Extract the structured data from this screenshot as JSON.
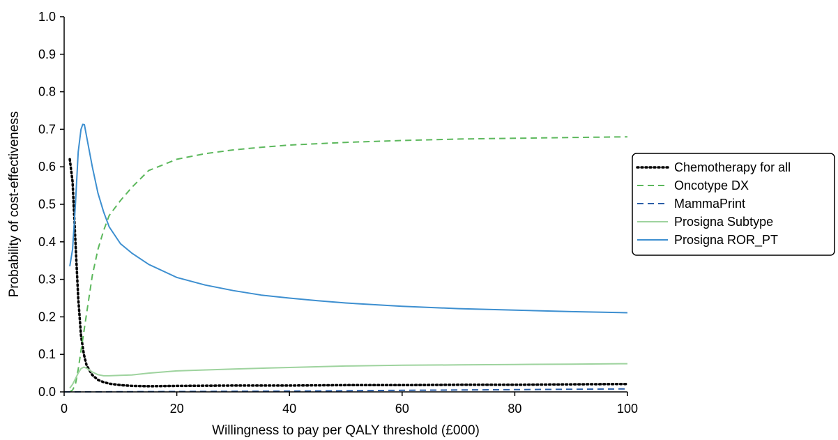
{
  "chart_data": {
    "type": "line",
    "title": "",
    "xlabel": "Willingness to pay per QALY threshold (£000)",
    "ylabel": "Probability of cost-effectiveness",
    "xlim": [
      0,
      100
    ],
    "ylim": [
      0,
      1.0
    ],
    "x_ticks": [
      "0",
      "20",
      "40",
      "60",
      "80",
      "100"
    ],
    "y_ticks": [
      "0.0",
      "0.1",
      "0.2",
      "0.3",
      "0.4",
      "0.5",
      "0.6",
      "0.7",
      "0.8",
      "0.9",
      "1.0"
    ],
    "grid": false,
    "legend_position": "right",
    "series": [
      {
        "name": "Chemotherapy for all",
        "color": "#000000",
        "style": "dotted",
        "x": [
          1,
          1.5,
          2,
          2.5,
          3,
          3.5,
          4,
          5,
          6,
          7,
          8,
          10,
          12,
          15,
          20,
          30,
          40,
          50,
          60,
          70,
          80,
          90,
          100
        ],
        "y": [
          0.62,
          0.56,
          0.4,
          0.25,
          0.15,
          0.1,
          0.07,
          0.045,
          0.032,
          0.026,
          0.022,
          0.018,
          0.016,
          0.015,
          0.016,
          0.017,
          0.017,
          0.018,
          0.018,
          0.019,
          0.019,
          0.02,
          0.021
        ]
      },
      {
        "name": "Oncotype DX",
        "color": "#5cb85c",
        "style": "dashed",
        "x": [
          1,
          1.5,
          2,
          2.5,
          3,
          3.5,
          4,
          5,
          6,
          7,
          8,
          10,
          12,
          15,
          20,
          25,
          30,
          35,
          40,
          50,
          60,
          70,
          80,
          90,
          100
        ],
        "y": [
          0.0,
          0.005,
          0.02,
          0.06,
          0.11,
          0.16,
          0.21,
          0.31,
          0.38,
          0.43,
          0.47,
          0.51,
          0.545,
          0.59,
          0.62,
          0.635,
          0.645,
          0.652,
          0.658,
          0.665,
          0.67,
          0.674,
          0.676,
          0.678,
          0.68
        ]
      },
      {
        "name": "MammaPrint",
        "color": "#2b5ea8",
        "style": "dashed",
        "x": [
          0,
          20,
          40,
          60,
          80,
          100
        ],
        "y": [
          0.0,
          0.001,
          0.002,
          0.004,
          0.006,
          0.008
        ]
      },
      {
        "name": "Prosigna Subtype",
        "color": "#9ed39e",
        "style": "solid",
        "x": [
          1,
          1.5,
          2,
          2.5,
          3,
          3.5,
          4,
          5,
          6,
          7,
          8,
          10,
          12,
          15,
          20,
          30,
          40,
          50,
          60,
          70,
          80,
          90,
          100
        ],
        "y": [
          0.01,
          0.02,
          0.035,
          0.05,
          0.062,
          0.066,
          0.063,
          0.053,
          0.046,
          0.043,
          0.043,
          0.044,
          0.045,
          0.05,
          0.056,
          0.061,
          0.065,
          0.069,
          0.071,
          0.072,
          0.073,
          0.074,
          0.075
        ]
      },
      {
        "name": "Prosigna ROR_PT",
        "color": "#3d8fd0",
        "style": "solid",
        "x": [
          1,
          1.5,
          2,
          2.5,
          3,
          3.3,
          3.6,
          4,
          5,
          6,
          7,
          8,
          10,
          12,
          15,
          20,
          25,
          30,
          35,
          40,
          45,
          50,
          60,
          70,
          80,
          90,
          100
        ],
        "y": [
          0.335,
          0.38,
          0.5,
          0.64,
          0.7,
          0.713,
          0.712,
          0.68,
          0.6,
          0.53,
          0.48,
          0.44,
          0.395,
          0.37,
          0.34,
          0.305,
          0.285,
          0.27,
          0.258,
          0.25,
          0.243,
          0.237,
          0.228,
          0.222,
          0.218,
          0.214,
          0.211
        ]
      }
    ]
  }
}
